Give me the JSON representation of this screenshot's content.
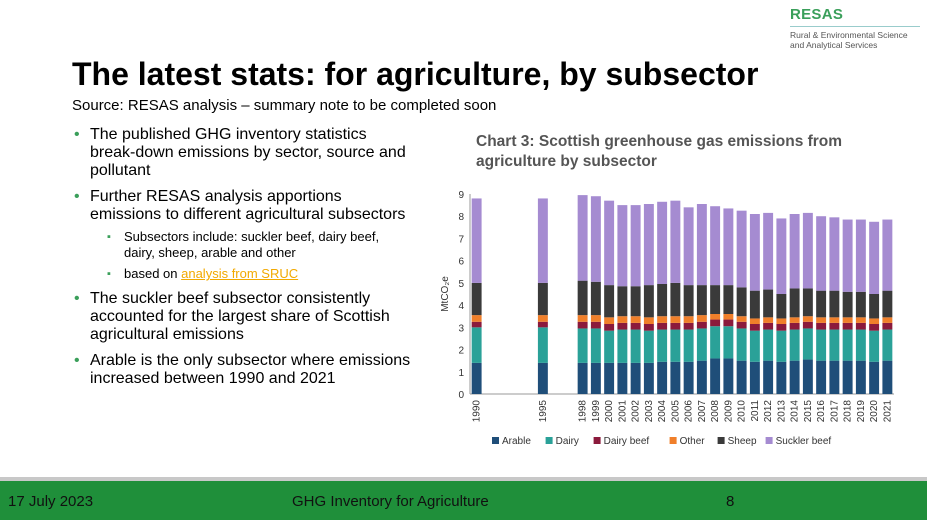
{
  "logo": {
    "name": "RESAS",
    "line1": "Rural & Environmental Science",
    "line2": "and Analytical Services"
  },
  "slide": {
    "title": "The latest stats: for agriculture, by subsector",
    "subtitle": "Source: RESAS analysis – summary note to be completed soon"
  },
  "bullets": {
    "b1": "The published GHG inventory statistics break-down emissions by sector, source and pollutant",
    "b2": "Further RESAS analysis apportions emissions to different agricultural subsectors",
    "s1": "Subsectors include: suckler beef, dairy beef, dairy, sheep, arable and other",
    "s2_prefix": "based on ",
    "s2_link": "analysis from SRUC",
    "b3": "The suckler beef subsector consistently accounted for the largest share of Scottish agricultural emissions",
    "b4": "Arable is the only subsector where emissions increased between 1990 and 2021"
  },
  "footer": {
    "date": "17 July 2023",
    "center": "GHG Inventory for Agriculture",
    "page": "8"
  },
  "colors": {
    "arable": "#1f4e79",
    "dairy": "#2aa198",
    "dairy_beef": "#8b1a3c",
    "other": "#f07f2a",
    "sheep": "#3a3a3a",
    "suckler": "#a58bd1",
    "footer_green": "#1f8f3a",
    "brand_green": "#3a9f5a"
  },
  "chart_data": {
    "type": "bar",
    "stacked": true,
    "title": "Chart 3: Scottish greenhouse gas emissions from agriculture by subsector",
    "ylabel": "MtCO₂e",
    "xlabel": "",
    "ylim": [
      0,
      9
    ],
    "yticks": [
      0,
      1,
      2,
      3,
      4,
      5,
      6,
      7,
      8,
      9
    ],
    "grid": false,
    "legend": "bottom",
    "categories": [
      "1990",
      "",
      "",
      "",
      "",
      "1995",
      "",
      "",
      "1998",
      "1999",
      "2000",
      "2001",
      "2002",
      "2003",
      "2004",
      "2005",
      "2006",
      "2007",
      "2008",
      "2009",
      "2010",
      "2011",
      "2012",
      "2013",
      "2014",
      "2015",
      "2016",
      "2017",
      "2018",
      "2019",
      "2020",
      "2021"
    ],
    "series": [
      {
        "name": "Arable",
        "color": "#1f4e79",
        "values": [
          1.4,
          null,
          null,
          null,
          null,
          1.4,
          null,
          null,
          1.4,
          1.4,
          1.4,
          1.4,
          1.4,
          1.4,
          1.45,
          1.45,
          1.45,
          1.5,
          1.6,
          1.6,
          1.5,
          1.45,
          1.5,
          1.45,
          1.5,
          1.55,
          1.5,
          1.5,
          1.5,
          1.5,
          1.45,
          1.5
        ]
      },
      {
        "name": "Dairy",
        "color": "#2aa198",
        "values": [
          1.6,
          null,
          null,
          null,
          null,
          1.6,
          null,
          null,
          1.55,
          1.55,
          1.45,
          1.5,
          1.5,
          1.45,
          1.45,
          1.45,
          1.45,
          1.45,
          1.45,
          1.45,
          1.45,
          1.4,
          1.4,
          1.4,
          1.4,
          1.4,
          1.4,
          1.4,
          1.4,
          1.4,
          1.4,
          1.4
        ]
      },
      {
        "name": "Dairy beef",
        "color": "#8b1a3c",
        "values": [
          0.25,
          null,
          null,
          null,
          null,
          0.25,
          null,
          null,
          0.3,
          0.3,
          0.3,
          0.3,
          0.3,
          0.3,
          0.3,
          0.3,
          0.3,
          0.3,
          0.3,
          0.3,
          0.3,
          0.3,
          0.3,
          0.3,
          0.3,
          0.3,
          0.3,
          0.3,
          0.3,
          0.3,
          0.3,
          0.3
        ]
      },
      {
        "name": "Other",
        "color": "#f07f2a",
        "values": [
          0.3,
          null,
          null,
          null,
          null,
          0.3,
          null,
          null,
          0.3,
          0.3,
          0.3,
          0.3,
          0.3,
          0.3,
          0.3,
          0.3,
          0.3,
          0.3,
          0.25,
          0.25,
          0.25,
          0.25,
          0.25,
          0.25,
          0.25,
          0.25,
          0.25,
          0.25,
          0.25,
          0.25,
          0.25,
          0.25
        ]
      },
      {
        "name": "Sheep",
        "color": "#3a3a3a",
        "values": [
          1.45,
          null,
          null,
          null,
          null,
          1.45,
          null,
          null,
          1.55,
          1.5,
          1.45,
          1.35,
          1.35,
          1.45,
          1.45,
          1.5,
          1.4,
          1.35,
          1.3,
          1.3,
          1.3,
          1.25,
          1.25,
          1.1,
          1.3,
          1.25,
          1.2,
          1.2,
          1.15,
          1.15,
          1.1,
          1.2
        ]
      },
      {
        "name": "Suckler beef",
        "color": "#a58bd1",
        "values": [
          3.8,
          null,
          null,
          null,
          null,
          3.8,
          null,
          null,
          3.85,
          3.85,
          3.8,
          3.65,
          3.65,
          3.65,
          3.7,
          3.7,
          3.5,
          3.65,
          3.55,
          3.45,
          3.45,
          3.45,
          3.45,
          3.4,
          3.35,
          3.4,
          3.35,
          3.3,
          3.25,
          3.25,
          3.25,
          3.2
        ]
      }
    ]
  }
}
